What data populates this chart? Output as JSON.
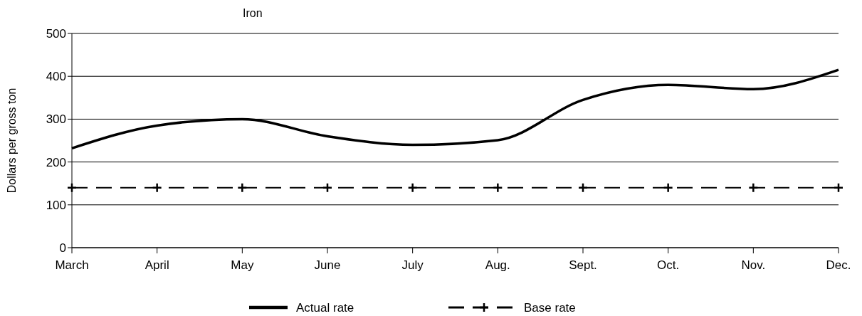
{
  "chart_data": {
    "type": "line",
    "title": "Iron",
    "ylabel": "Dollars per gross ton",
    "categories": [
      "March",
      "April",
      "May",
      "June",
      "July",
      "Aug.",
      "Sept.",
      "Oct.",
      "Nov.",
      "Dec."
    ],
    "series": [
      {
        "name": "Actual rate",
        "color": "#000000",
        "values": [
          232,
          285,
          300,
          260,
          240,
          251,
          345,
          380,
          370,
          415
        ],
        "marker": "none",
        "line_style": "solid"
      },
      {
        "name": "Base rate",
        "color": "#000000",
        "values": [
          140,
          140,
          140,
          140,
          140,
          140,
          140,
          140,
          140,
          140
        ],
        "marker": "cross",
        "line_style": "dashed"
      }
    ],
    "ylim": [
      0,
      500
    ],
    "yticks": [
      0,
      100,
      200,
      300,
      400,
      500
    ],
    "grid": "y",
    "legend": "bottom"
  }
}
